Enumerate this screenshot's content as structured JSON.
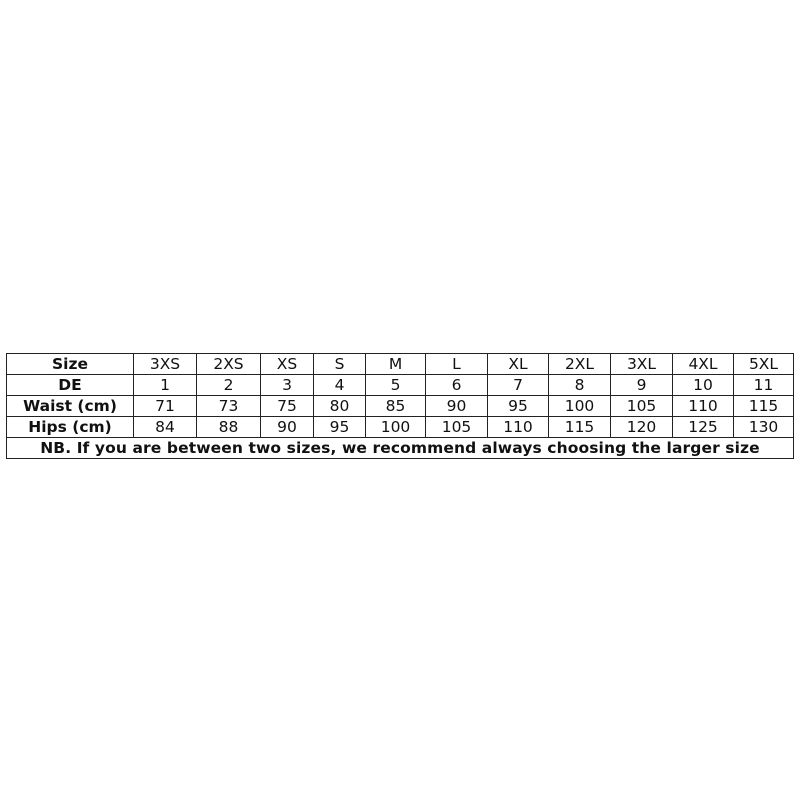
{
  "size_chart": {
    "rows": [
      {
        "label": "Size",
        "values": [
          "3XS",
          "2XS",
          "XS",
          "S",
          "M",
          "L",
          "XL",
          "2XL",
          "3XL",
          "4XL",
          "5XL"
        ]
      },
      {
        "label": "DE",
        "values": [
          "1",
          "2",
          "3",
          "4",
          "5",
          "6",
          "7",
          "8",
          "9",
          "10",
          "11"
        ]
      },
      {
        "label": "Waist (cm)",
        "values": [
          "71",
          "73",
          "75",
          "80",
          "85",
          "90",
          "95",
          "100",
          "105",
          "110",
          "115"
        ]
      },
      {
        "label": "Hips (cm)",
        "values": [
          "84",
          "88",
          "90",
          "95",
          "100",
          "105",
          "110",
          "115",
          "120",
          "125",
          "130"
        ]
      }
    ],
    "note": "NB. If you are between two sizes, we recommend always choosing the larger size"
  }
}
